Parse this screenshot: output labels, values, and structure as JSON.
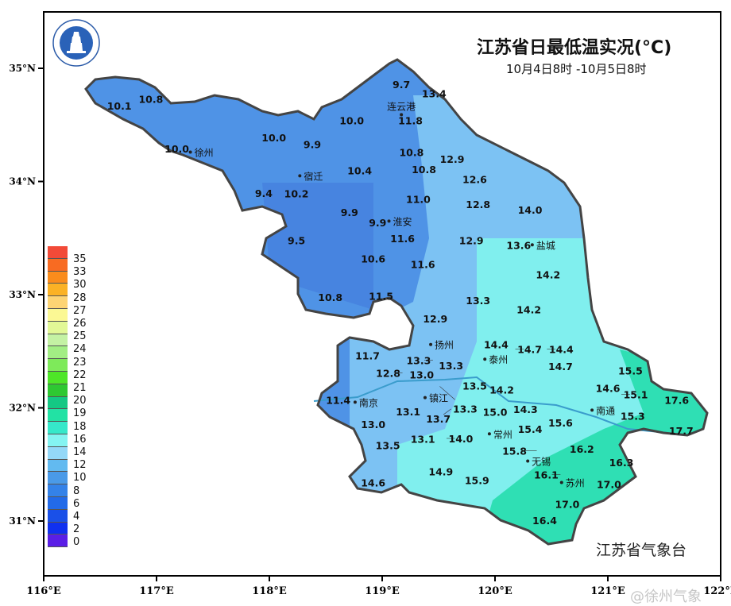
{
  "header": {
    "title": "江苏省日最低温实况(°C)",
    "subtitle": "10月4日8时 -10月5日8时"
  },
  "footer": {
    "organization": "江苏省气象台",
    "watermark": "@徐州气象"
  },
  "logo": {
    "text": "江苏省气象台",
    "icon": "pagoda-seal-logo"
  },
  "axes": {
    "lon_ticks": [
      "116°E",
      "117°E",
      "118°E",
      "119°E",
      "120°E",
      "121°E",
      "122°E"
    ],
    "lat_ticks": [
      "35°N",
      "34°N",
      "33°N",
      "32°N",
      "31°N"
    ],
    "lon_range": [
      116,
      122
    ],
    "lat_range": [
      30.5,
      35.5
    ]
  },
  "legend": {
    "labels": [
      "35",
      "33",
      "30",
      "28",
      "27",
      "26",
      "25",
      "24",
      "23",
      "22",
      "21",
      "20",
      "19",
      "18",
      "16",
      "14",
      "12",
      "10",
      "8",
      "6",
      "4",
      "2",
      "0"
    ],
    "colors": [
      "#f24a38",
      "#f86b22",
      "#fa8c1c",
      "#fbb225",
      "#fdd474",
      "#fbf894",
      "#e2f896",
      "#c4f2a4",
      "#a2ee84",
      "#7eea5a",
      "#4ee628",
      "#2ec832",
      "#14c884",
      "#22e2a4",
      "#36e8ca",
      "#84f4f2",
      "#94d8f8",
      "#62baf0",
      "#4a9ae8",
      "#3482e8",
      "#226ae8",
      "#1a50e8",
      "#1030f0",
      "#5a1ee6"
    ]
  },
  "map_colors": {
    "base": "#4f93e6",
    "west": "#4784e0",
    "light": "#7cc2f3",
    "cyan": "#80efee",
    "green": "#2fdfb4",
    "river": "#3a9ccc",
    "border": "#444444"
  },
  "cities": [
    {
      "name": "连云港",
      "lon": 119.17,
      "lat": 34.59
    },
    {
      "name": "徐州",
      "lon": 117.3,
      "lat": 34.26
    },
    {
      "name": "宿迁",
      "lon": 118.27,
      "lat": 34.05
    },
    {
      "name": "淮安",
      "lon": 119.06,
      "lat": 33.65
    },
    {
      "name": "盐城",
      "lon": 120.33,
      "lat": 33.44
    },
    {
      "name": "扬州",
      "lon": 119.43,
      "lat": 32.56
    },
    {
      "name": "泰州",
      "lon": 119.91,
      "lat": 32.43
    },
    {
      "name": "镇江",
      "lon": 119.38,
      "lat": 32.09
    },
    {
      "name": "南京",
      "lon": 118.76,
      "lat": 32.05
    },
    {
      "name": "常州",
      "lon": 119.95,
      "lat": 31.77
    },
    {
      "name": "无锡",
      "lon": 120.29,
      "lat": 31.53
    },
    {
      "name": "苏州",
      "lon": 120.59,
      "lat": 31.34
    },
    {
      "name": "南通",
      "lon": 120.86,
      "lat": 31.98
    }
  ],
  "stations": [
    {
      "v": "10.1",
      "lon": 116.67,
      "lat": 34.67
    },
    {
      "v": "10.8",
      "lon": 116.95,
      "lat": 34.73
    },
    {
      "v": "9.7",
      "lon": 119.17,
      "lat": 34.86
    },
    {
      "v": "13.4",
      "lon": 119.46,
      "lat": 34.78
    },
    {
      "v": "11.8",
      "lon": 119.25,
      "lat": 34.54
    },
    {
      "v": "10.0",
      "lon": 118.73,
      "lat": 34.54
    },
    {
      "v": "10.0",
      "lon": 118.04,
      "lat": 34.39
    },
    {
      "v": "9.9",
      "lon": 118.38,
      "lat": 34.33
    },
    {
      "v": "10.0",
      "lon": 117.18,
      "lat": 34.29
    },
    {
      "v": "10.8",
      "lon": 119.26,
      "lat": 34.26
    },
    {
      "v": "12.9",
      "lon": 119.62,
      "lat": 34.2
    },
    {
      "v": "10.4",
      "lon": 118.8,
      "lat": 34.1
    },
    {
      "v": "10.8",
      "lon": 119.37,
      "lat": 34.11
    },
    {
      "v": "12.6",
      "lon": 119.82,
      "lat": 34.02
    },
    {
      "v": "10.2",
      "lon": 118.24,
      "lat": 33.98
    },
    {
      "v": "9.4",
      "lon": 117.95,
      "lat": 33.9
    },
    {
      "v": "11.0",
      "lon": 119.32,
      "lat": 33.76
    },
    {
      "v": "12.8",
      "lon": 119.85,
      "lat": 33.8
    },
    {
      "v": "14.0",
      "lon": 120.31,
      "lat": 33.75
    },
    {
      "v": "9.9",
      "lon": 118.71,
      "lat": 33.73
    },
    {
      "v": "9.9",
      "lon": 118.96,
      "lat": 33.64
    },
    {
      "v": "11.6",
      "lon": 119.18,
      "lat": 33.5
    },
    {
      "v": "12.9",
      "lon": 119.79,
      "lat": 33.48
    },
    {
      "v": "13.6",
      "lon": 120.21,
      "lat": 33.44
    },
    {
      "v": "9.5",
      "lon": 118.24,
      "lat": 33.48
    },
    {
      "v": "10.6",
      "lon": 118.92,
      "lat": 33.32
    },
    {
      "v": "11.6",
      "lon": 119.36,
      "lat": 33.27
    },
    {
      "v": "14.2",
      "lon": 120.47,
      "lat": 33.18
    },
    {
      "v": "10.8",
      "lon": 118.54,
      "lat": 32.98
    },
    {
      "v": "11.5",
      "lon": 118.99,
      "lat": 32.99
    },
    {
      "v": "13.3",
      "lon": 119.85,
      "lat": 32.95
    },
    {
      "v": "14.2",
      "lon": 120.3,
      "lat": 32.87
    },
    {
      "v": "12.9",
      "lon": 119.47,
      "lat": 32.79
    },
    {
      "v": "14.4",
      "lon": 120.01,
      "lat": 32.56
    },
    {
      "v": "14.7",
      "lon": 120.18,
      "lat": 32.52
    },
    {
      "v": "14.4",
      "lon": 120.46,
      "lat": 32.52
    },
    {
      "v": "13.3",
      "lon": 119.61,
      "lat": 32.46
    },
    {
      "v": "13.3",
      "lon": 119.45,
      "lat": 32.42
    },
    {
      "v": "13.0",
      "lon": 119.35,
      "lat": 32.38
    },
    {
      "v": "12.8",
      "lon": 119.18,
      "lat": 32.31
    },
    {
      "v": "11.7",
      "lon": 118.87,
      "lat": 32.38
    },
    {
      "v": "14.7",
      "lon": 120.58,
      "lat": 32.37
    },
    {
      "v": "15.5",
      "lon": 121.2,
      "lat": 32.33
    },
    {
      "v": "13.5",
      "lon": 119.82,
      "lat": 32.28
    },
    {
      "v": "13.3",
      "lon": 119.51,
      "lat": 32.19
    },
    {
      "v": "14.2",
      "lon": 120.06,
      "lat": 32.16
    },
    {
      "v": "11.4",
      "lon": 118.61,
      "lat": 32.07
    },
    {
      "v": "14.6",
      "lon": 121.0,
      "lat": 32.09
    },
    {
      "v": "15.1",
      "lon": 121.12,
      "lat": 32.12
    },
    {
      "v": "17.6",
      "lon": 121.61,
      "lat": 32.07
    },
    {
      "v": "13.7",
      "lon": 119.61,
      "lat": 31.99
    },
    {
      "v": "13.0",
      "lon": 118.92,
      "lat": 31.94
    },
    {
      "v": "13.1",
      "lon": 119.23,
      "lat": 31.97
    },
    {
      "v": "14.3",
      "lon": 120.27,
      "lat": 31.99
    },
    {
      "v": "15.4",
      "lon": 120.31,
      "lat": 31.9
    },
    {
      "v": "15.0",
      "lon": 120.0,
      "lat": 31.88
    },
    {
      "v": "15.6",
      "lon": 120.58,
      "lat": 31.87
    },
    {
      "v": "15.3",
      "lon": 121.22,
      "lat": 31.93
    },
    {
      "v": "17.7",
      "lon": 121.65,
      "lat": 31.8
    },
    {
      "v": "13.1",
      "lon": 119.36,
      "lat": 31.81
    },
    {
      "v": "14.0",
      "lon": 119.57,
      "lat": 31.73
    },
    {
      "v": "13.5",
      "lon": 119.05,
      "lat": 31.67
    },
    {
      "v": "15.8",
      "lon": 120.37,
      "lat": 31.62
    },
    {
      "v": "16.2",
      "lon": 120.77,
      "lat": 31.64
    },
    {
      "v": "16.3",
      "lon": 121.12,
      "lat": 31.52
    },
    {
      "v": "14.6",
      "lon": 118.92,
      "lat": 31.34
    },
    {
      "v": "14.9",
      "lon": 119.52,
      "lat": 31.44
    },
    {
      "v": "15.9",
      "lon": 119.84,
      "lat": 31.36
    },
    {
      "v": "16.1",
      "lon": 120.58,
      "lat": 31.41
    },
    {
      "v": "17.0",
      "lon": 121.01,
      "lat": 31.41
    },
    {
      "v": "17.0",
      "lon": 120.64,
      "lat": 31.15
    },
    {
      "v": "16.4",
      "lon": 120.44,
      "lat": 31.09
    }
  ]
}
